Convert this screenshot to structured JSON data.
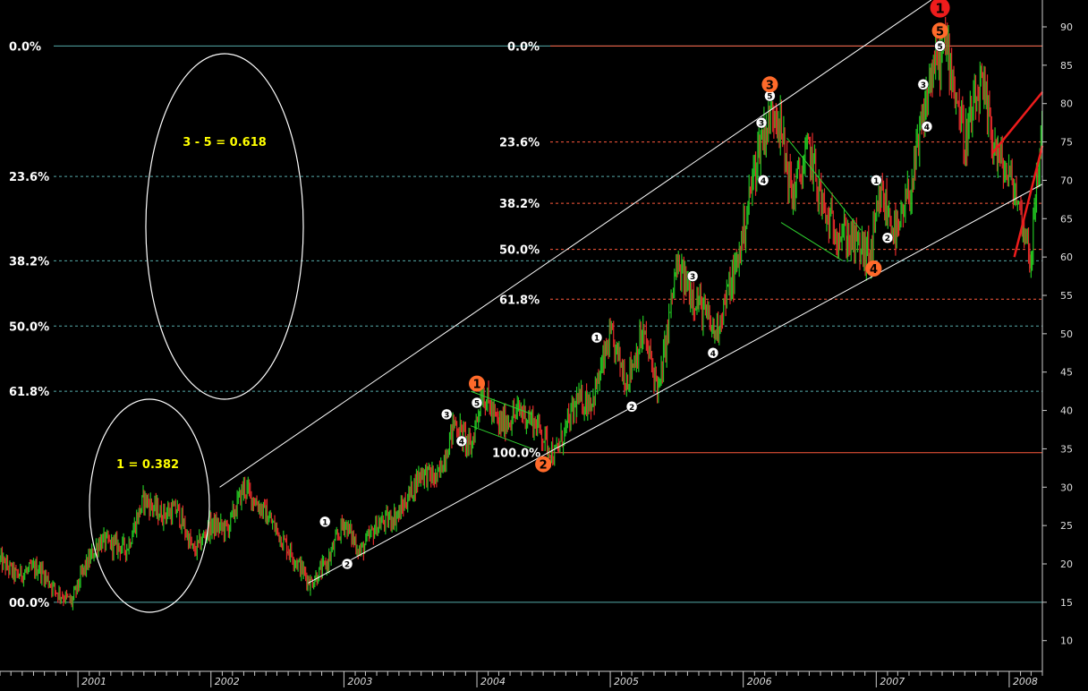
{
  "chart_data": {
    "type": "line",
    "x": [
      "2000-06-01",
      "2000-07-15",
      "2000-09-15",
      "2000-11-01",
      "2000-12-15",
      "2001-01-15",
      "2001-03-01",
      "2001-05-15",
      "2001-07-01",
      "2001-08-15",
      "2001-10-01",
      "2001-11-15",
      "2002-01-01",
      "2002-02-15",
      "2002-04-01",
      "2002-06-01",
      "2002-08-01",
      "2002-10-01",
      "2002-11-15",
      "2003-01-01",
      "2003-02-15",
      "2003-04-01",
      "2003-06-01",
      "2003-08-01",
      "2003-09-15",
      "2003-11-01",
      "2003-12-15",
      "2004-01-15",
      "2004-03-01",
      "2004-05-01",
      "2004-06-15",
      "2004-08-01",
      "2004-10-01",
      "2004-11-15",
      "2005-01-01",
      "2005-02-15",
      "2005-04-01",
      "2005-05-15",
      "2005-07-01",
      "2005-09-01",
      "2005-10-15",
      "2005-12-15",
      "2006-02-15",
      "2006-04-01",
      "2006-05-15",
      "2006-07-01",
      "2006-08-15",
      "2006-10-15",
      "2006-12-15",
      "2007-01-15",
      "2007-03-01",
      "2007-04-15",
      "2007-06-01",
      "2007-07-15",
      "2007-09-01",
      "2007-10-15",
      "2007-12-01",
      "2008-01-15",
      "2008-03-01",
      "2008-04-01"
    ],
    "values": [
      20.5,
      18.5,
      19.5,
      16.5,
      15.0,
      19.0,
      23.0,
      22.0,
      28.5,
      26.5,
      27.0,
      21.5,
      25.0,
      24.5,
      30.0,
      26.5,
      22.0,
      17.5,
      20.0,
      25.5,
      21.5,
      25.0,
      26.5,
      32.0,
      31.0,
      38.5,
      35.0,
      42.5,
      38.0,
      40.0,
      38.0,
      34.0,
      41.0,
      41.5,
      49.5,
      44.0,
      50.0,
      42.5,
      58.5,
      54.0,
      50.0,
      59.0,
      75.0,
      80.0,
      68.0,
      74.0,
      65.0,
      62.5,
      60.0,
      68.0,
      62.5,
      71.0,
      84.0,
      87.5,
      75.0,
      82.0,
      73.0,
      69.0,
      60.0,
      78.0
    ],
    "xlim": [
      "2000-06-01",
      "2008-04-01"
    ],
    "ylim": [
      6,
      93.5
    ],
    "yticks": [
      10,
      15,
      20,
      25,
      30,
      35,
      40,
      45,
      50,
      55,
      60,
      65,
      70,
      75,
      80,
      85,
      90
    ],
    "xticks": [
      "2001",
      "2002",
      "2003",
      "2004",
      "2005",
      "2006",
      "2007",
      "2008"
    ],
    "colors": {
      "background": "#000000",
      "up": "#22c422",
      "down": "#e22a2a",
      "grid": "#55aaa9",
      "red_grid": "#ff5a3c",
      "lines": "#ffffff",
      "annotation": "#ffff00",
      "major_wave": "#ff6a2a",
      "top_wave": "#ee1c1c"
    },
    "fib_left": {
      "levels": [
        {
          "label": "0.0%",
          "value": 87.5
        },
        {
          "label": "23.6%",
          "value": 70.5
        },
        {
          "label": "38.2%",
          "value": 59.5
        },
        {
          "label": "50.0%",
          "value": 51.0
        },
        {
          "label": "61.8%",
          "value": 42.5
        },
        {
          "label": "00.0%",
          "value": 15.0
        }
      ]
    },
    "fib_right": {
      "levels": [
        {
          "label": "0.0%",
          "value": 87.5
        },
        {
          "label": "23.6%",
          "value": 75.0
        },
        {
          "label": "38.2%",
          "value": 67.0
        },
        {
          "label": "50.0%",
          "value": 61.0
        },
        {
          "label": "61.8%",
          "value": 54.5
        },
        {
          "label": "100.0%",
          "value": 34.5
        }
      ]
    },
    "ellipse_labels": [
      "3 - 5 = 0.618",
      "1 = 0.382"
    ],
    "major_waves": [
      {
        "label": "1",
        "x": "2004-01-01",
        "y": 43.5
      },
      {
        "label": "2",
        "x": "2004-07-01",
        "y": 33.0
      },
      {
        "label": "3",
        "x": "2006-03-15",
        "y": 82.5
      },
      {
        "label": "4",
        "x": "2006-12-25",
        "y": 58.5
      },
      {
        "label": "5",
        "x": "2007-06-25",
        "y": 89.5
      }
    ],
    "top_wave": {
      "label": "1",
      "x": "2007-06-25",
      "y": 92.5
    },
    "minor_waves": [
      {
        "label": "1",
        "x": "2002-11-10",
        "y": 25.5
      },
      {
        "label": "2",
        "x": "2003-01-10",
        "y": 20.0
      },
      {
        "label": "3",
        "x": "2003-10-10",
        "y": 39.5
      },
      {
        "label": "4",
        "x": "2003-11-20",
        "y": 36.0
      },
      {
        "label": "5",
        "x": "2004-01-01",
        "y": 41.0
      },
      {
        "label": "1",
        "x": "2004-11-25",
        "y": 49.5
      },
      {
        "label": "2",
        "x": "2005-03-01",
        "y": 40.5
      },
      {
        "label": "3",
        "x": "2005-08-15",
        "y": 57.5
      },
      {
        "label": "4",
        "x": "2005-10-10",
        "y": 47.5
      },
      {
        "label": "3",
        "x": "2006-02-20",
        "y": 77.5
      },
      {
        "label": "5",
        "x": "2006-03-15",
        "y": 81.0
      },
      {
        "label": "4",
        "x": "2006-02-25",
        "y": 70.0
      },
      {
        "label": "1",
        "x": "2007-01-01",
        "y": 70.0
      },
      {
        "label": "2",
        "x": "2007-02-01",
        "y": 62.5
      },
      {
        "label": "3",
        "x": "2007-05-10",
        "y": 82.5
      },
      {
        "label": "4",
        "x": "2007-05-20",
        "y": 77.0
      },
      {
        "label": "5",
        "x": "2007-06-25",
        "y": 87.5
      }
    ]
  }
}
